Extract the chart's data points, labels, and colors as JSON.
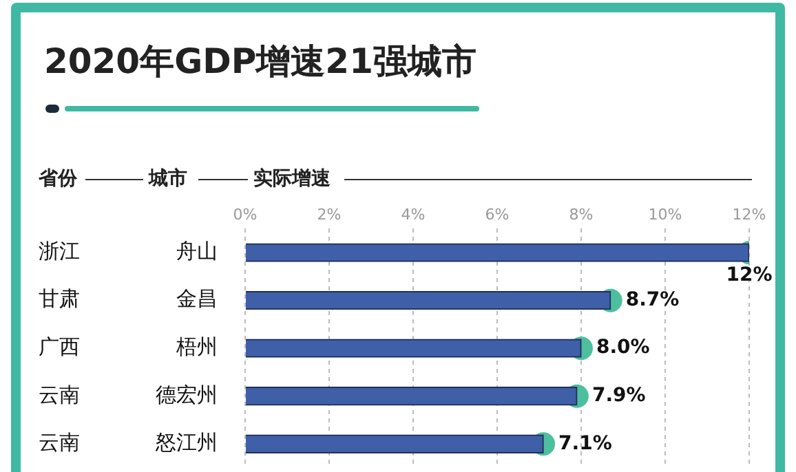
{
  "chart_data": {
    "type": "bar",
    "orientation": "horizontal",
    "title": "2020年GDP增速21强城市",
    "ylabel": "城市",
    "xlabel": "实际增速",
    "annotations": [
      "省份"
    ],
    "categories": [
      "舟山",
      "金昌",
      "梧州",
      "德宏州",
      "怒江州"
    ],
    "y2_categories": [
      "浙江",
      "甘肃",
      "广西",
      "云南",
      "云南"
    ],
    "series": [
      {
        "color": "#3f5fa8",
        "values": [
          12,
          8.7,
          8.0,
          7.9,
          7.1
        ]
      },
      {
        "type": "scatter",
        "color": "#4dbf9e",
        "marker": "circle",
        "values": [
          12,
          8.7,
          8.0,
          7.9,
          7.1
        ],
        "value_labels": [
          "12%",
          "8.7%",
          "8.0%",
          "7.9%",
          "7.1%"
        ]
      }
    ],
    "xlim": [
      0,
      12
    ],
    "xticks": [
      {
        "value": 0,
        "label": "0%"
      },
      {
        "value": 2,
        "label": "2%"
      },
      {
        "value": 4,
        "label": "4%"
      },
      {
        "value": 6,
        "label": "6%"
      },
      {
        "value": 8,
        "label": "8%"
      },
      {
        "value": 10,
        "label": "10%"
      },
      {
        "value": 12,
        "label": "12%"
      }
    ],
    "grid": "x",
    "legend": false
  }
}
